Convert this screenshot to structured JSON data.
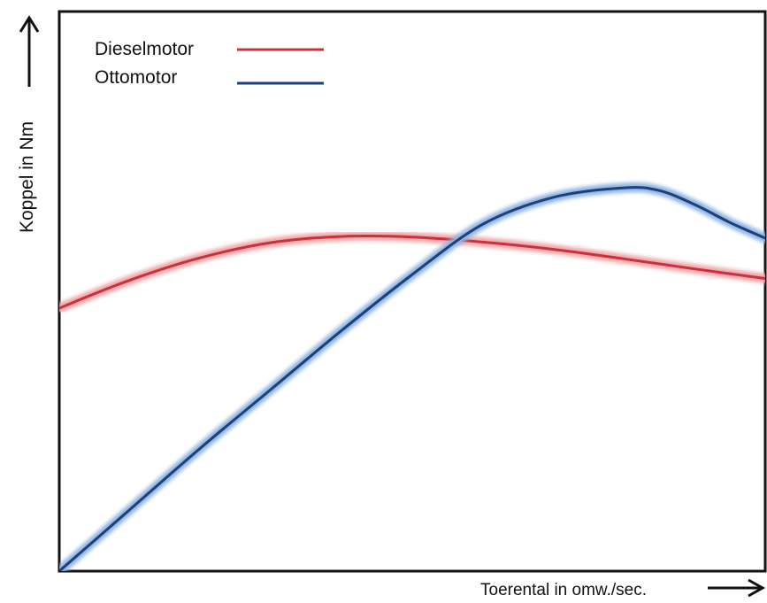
{
  "chart_data": {
    "type": "line",
    "title": "",
    "xlabel": "Toerental  in omw./sec.",
    "ylabel": "Koppel in Nm",
    "xlim": [
      0,
      100
    ],
    "ylim": [
      0,
      100
    ],
    "grid": false,
    "ticks": false,
    "legend_position": "top-left",
    "series": [
      {
        "name": "Dieselmotor",
        "color": "#c8323c",
        "glow": "#f2a7aa",
        "x": [
          0,
          10,
          20,
          30,
          40,
          50,
          60,
          70,
          80,
          90,
          100
        ],
        "y": [
          47,
          52,
          56,
          58.7,
          59.8,
          59.7,
          58.8,
          57.5,
          55.8,
          54,
          52.3
        ]
      },
      {
        "name": "Ottomotor",
        "color": "#1d3f7a",
        "glow": "#8fb6e3",
        "x": [
          0,
          10,
          20,
          30,
          40,
          50,
          60,
          70,
          80,
          85,
          90,
          95,
          100
        ],
        "y": [
          0,
          11,
          22,
          32.5,
          43,
          53,
          62,
          66.8,
          68.5,
          68,
          65.5,
          62.3,
          59.5
        ]
      }
    ]
  }
}
